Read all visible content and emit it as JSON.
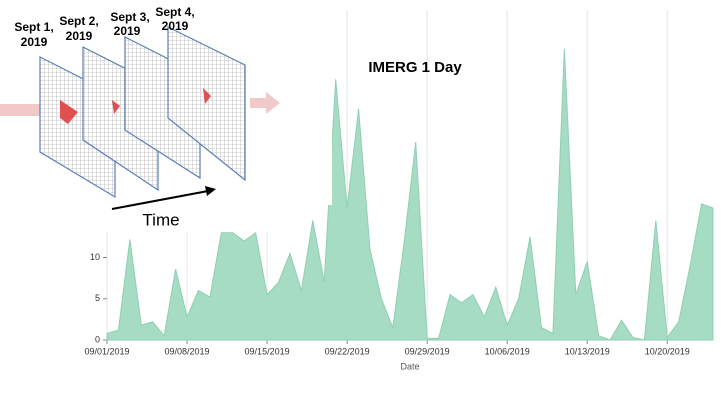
{
  "chart_data": {
    "type": "area",
    "title": "IMERG 1 Day",
    "x_label": "Date",
    "color": "#a6dcc4",
    "grid": true,
    "x": [
      "2019-09-01",
      "2019-09-02",
      "2019-09-03",
      "2019-09-04",
      "2019-09-05",
      "2019-09-06",
      "2019-09-07",
      "2019-09-08",
      "2019-09-09",
      "2019-09-10",
      "2019-09-11",
      "2019-09-12",
      "2019-09-13",
      "2019-09-14",
      "2019-09-15",
      "2019-09-16",
      "2019-09-17",
      "2019-09-18",
      "2019-09-19",
      "2019-09-20",
      "2019-09-21",
      "2019-09-22",
      "2019-09-23",
      "2019-09-24",
      "2019-09-25",
      "2019-09-26",
      "2019-09-27",
      "2019-09-28",
      "2019-09-29",
      "2019-09-30",
      "2019-10-01",
      "2019-10-02",
      "2019-10-03",
      "2019-10-04",
      "2019-10-05",
      "2019-10-06",
      "2019-10-07",
      "2019-10-08",
      "2019-10-09",
      "2019-10-10",
      "2019-10-11",
      "2019-10-12",
      "2019-10-13",
      "2019-10-14",
      "2019-10-15",
      "2019-10-16",
      "2019-10-17",
      "2019-10-18",
      "2019-10-19",
      "2019-10-20",
      "2019-10-21",
      "2019-10-22",
      "2019-10-23",
      "2019-10-24"
    ],
    "values": [
      0.8,
      1.2,
      12.2,
      1.8,
      2.2,
      0.5,
      8.6,
      2.8,
      6,
      5.2,
      13,
      13,
      12,
      13,
      5.5,
      7,
      10.5,
      6,
      14.5,
      7,
      31.6,
      16,
      28,
      11,
      5,
      1.5,
      12,
      24,
      0.2,
      0.2,
      5.5,
      4.5,
      5.5,
      2.8,
      6.4,
      1.8,
      5,
      12.5,
      1.5,
      0.8,
      35.3,
      5.5,
      9.5,
      0.5,
      0,
      2.4,
      0.3,
      0,
      14.5,
      0.3,
      2.2,
      9,
      16.5,
      16
    ],
    "xlim": [
      "2019-09-01",
      "2019-10-24"
    ],
    "xticks": [
      {
        "value": "2019-09-01",
        "label": "09/01/2019"
      },
      {
        "value": "2019-09-08",
        "label": "09/08/2019"
      },
      {
        "value": "2019-09-15",
        "label": "09/15/2019"
      },
      {
        "value": "2019-09-22",
        "label": "09/22/2019"
      },
      {
        "value": "2019-09-29",
        "label": "09/29/2019"
      },
      {
        "value": "2019-10-06",
        "label": "10/06/2019"
      },
      {
        "value": "2019-10-13",
        "label": "10/13/2019"
      },
      {
        "value": "2019-10-20",
        "label": "10/20/2019"
      }
    ],
    "ylim": [
      0,
      40
    ],
    "yticks": [
      0,
      5,
      10
    ]
  },
  "diagram": {
    "panels": [
      {
        "label": [
          "Sept 1,",
          "2019"
        ]
      },
      {
        "label": [
          "Sept 2,",
          "2019"
        ]
      },
      {
        "label": [
          "Sept 3,",
          "2019"
        ]
      },
      {
        "label": [
          "Sept 4,",
          "2019"
        ]
      }
    ],
    "axis_label": "Time"
  }
}
